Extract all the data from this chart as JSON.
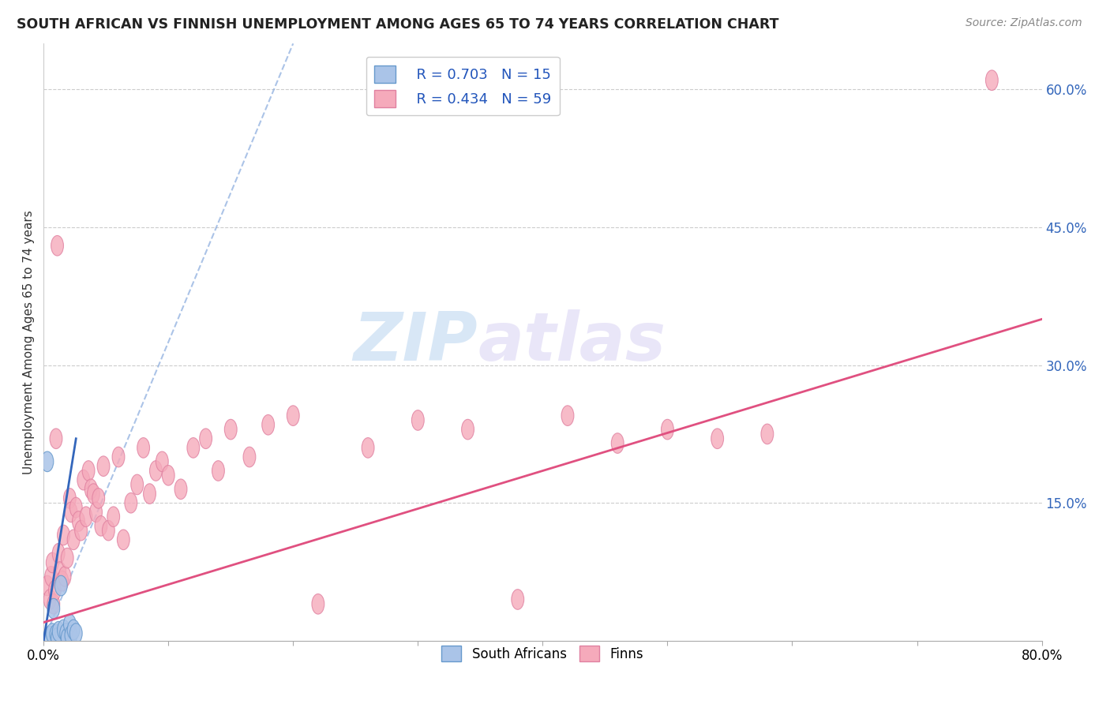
{
  "title": "SOUTH AFRICAN VS FINNISH UNEMPLOYMENT AMONG AGES 65 TO 74 YEARS CORRELATION CHART",
  "source": "Source: ZipAtlas.com",
  "ylabel": "Unemployment Among Ages 65 to 74 years",
  "xlim": [
    0,
    0.8
  ],
  "ylim": [
    0,
    0.65
  ],
  "sa_R": "0.703",
  "sa_N": "15",
  "fi_R": "0.434",
  "fi_N": "59",
  "sa_color": "#aac4e8",
  "fi_color": "#f5aabb",
  "sa_edge_color": "#6699cc",
  "fi_edge_color": "#e080a0",
  "sa_line_color": "#3366bb",
  "fi_line_color": "#e05080",
  "legend_label_sa": "South Africans",
  "legend_label_fi": "Finns",
  "watermark_zip": "ZIP",
  "watermark_atlas": "atlas",
  "sa_points": [
    [
      0.003,
      0.195
    ],
    [
      0.005,
      0.005
    ],
    [
      0.007,
      0.008
    ],
    [
      0.008,
      0.035
    ],
    [
      0.01,
      0.007
    ],
    [
      0.011,
      0.003
    ],
    [
      0.012,
      0.01
    ],
    [
      0.014,
      0.06
    ],
    [
      0.016,
      0.012
    ],
    [
      0.018,
      0.008
    ],
    [
      0.019,
      0.003
    ],
    [
      0.021,
      0.018
    ],
    [
      0.022,
      0.006
    ],
    [
      0.024,
      0.012
    ],
    [
      0.026,
      0.008
    ]
  ],
  "fi_points": [
    [
      0.003,
      0.06
    ],
    [
      0.005,
      0.045
    ],
    [
      0.006,
      0.07
    ],
    [
      0.007,
      0.085
    ],
    [
      0.008,
      0.04
    ],
    [
      0.009,
      0.055
    ],
    [
      0.01,
      0.22
    ],
    [
      0.011,
      0.43
    ],
    [
      0.012,
      0.095
    ],
    [
      0.013,
      0.075
    ],
    [
      0.015,
      0.065
    ],
    [
      0.016,
      0.115
    ],
    [
      0.017,
      0.07
    ],
    [
      0.019,
      0.09
    ],
    [
      0.021,
      0.155
    ],
    [
      0.022,
      0.14
    ],
    [
      0.024,
      0.11
    ],
    [
      0.026,
      0.145
    ],
    [
      0.028,
      0.13
    ],
    [
      0.03,
      0.12
    ],
    [
      0.032,
      0.175
    ],
    [
      0.034,
      0.135
    ],
    [
      0.036,
      0.185
    ],
    [
      0.038,
      0.165
    ],
    [
      0.04,
      0.16
    ],
    [
      0.042,
      0.14
    ],
    [
      0.044,
      0.155
    ],
    [
      0.046,
      0.125
    ],
    [
      0.048,
      0.19
    ],
    [
      0.052,
      0.12
    ],
    [
      0.056,
      0.135
    ],
    [
      0.06,
      0.2
    ],
    [
      0.064,
      0.11
    ],
    [
      0.07,
      0.15
    ],
    [
      0.075,
      0.17
    ],
    [
      0.08,
      0.21
    ],
    [
      0.085,
      0.16
    ],
    [
      0.09,
      0.185
    ],
    [
      0.095,
      0.195
    ],
    [
      0.1,
      0.18
    ],
    [
      0.11,
      0.165
    ],
    [
      0.12,
      0.21
    ],
    [
      0.13,
      0.22
    ],
    [
      0.14,
      0.185
    ],
    [
      0.15,
      0.23
    ],
    [
      0.165,
      0.2
    ],
    [
      0.18,
      0.235
    ],
    [
      0.2,
      0.245
    ],
    [
      0.22,
      0.04
    ],
    [
      0.26,
      0.21
    ],
    [
      0.3,
      0.24
    ],
    [
      0.34,
      0.23
    ],
    [
      0.38,
      0.045
    ],
    [
      0.42,
      0.245
    ],
    [
      0.46,
      0.215
    ],
    [
      0.5,
      0.23
    ],
    [
      0.54,
      0.22
    ],
    [
      0.58,
      0.225
    ],
    [
      0.76,
      0.61
    ]
  ],
  "sa_trendline": [
    [
      0.0,
      0.0
    ],
    [
      0.026,
      0.22
    ]
  ],
  "sa_dashed_line": [
    [
      0.0,
      0.0
    ],
    [
      0.2,
      0.65
    ]
  ],
  "fi_trendline": [
    [
      0.0,
      0.02
    ],
    [
      0.8,
      0.35
    ]
  ]
}
